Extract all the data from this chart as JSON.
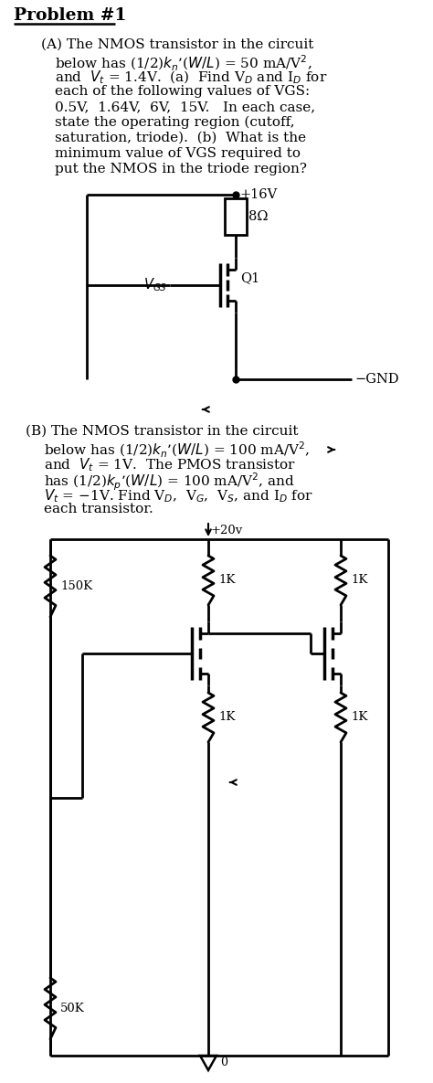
{
  "bg_color": "#ffffff",
  "fig_width": 4.74,
  "fig_height": 11.85,
  "dpi": 100,
  "title": "Problem #1",
  "part_a_lines": [
    "(A) The NMOS transistor in the circuit",
    "below has (1/2)$k_n$’($W/L$) = 50 mA/V$^2$,",
    "and  $V_t$ = 1.4V.  (a)  Find V$_D$ and I$_D$ for",
    "each of the following values of VGS:",
    "0.5V,  1.64V,  6V,  15V.   In each case,",
    "state the operating region (cutoff,",
    "saturation, triode).  (b)  What is the",
    "minimum value of VGS required to",
    "put the NMOS in the triode region?"
  ],
  "part_b_lines": [
    "(B) The NMOS transistor in the circuit",
    "below has (1/2)$k_n$’($W/L$) = 100 mA/V$^2$,",
    "and  $V_t$ = 1V.  The PMOS transistor",
    "has (1/2)$k_p$’($W/L$) = 100 mA/V$^2$, and",
    "$V_t$ = −1V. Find V$_D$,  V$_G$,  V$_S$, and I$_D$ for",
    "each transistor."
  ]
}
